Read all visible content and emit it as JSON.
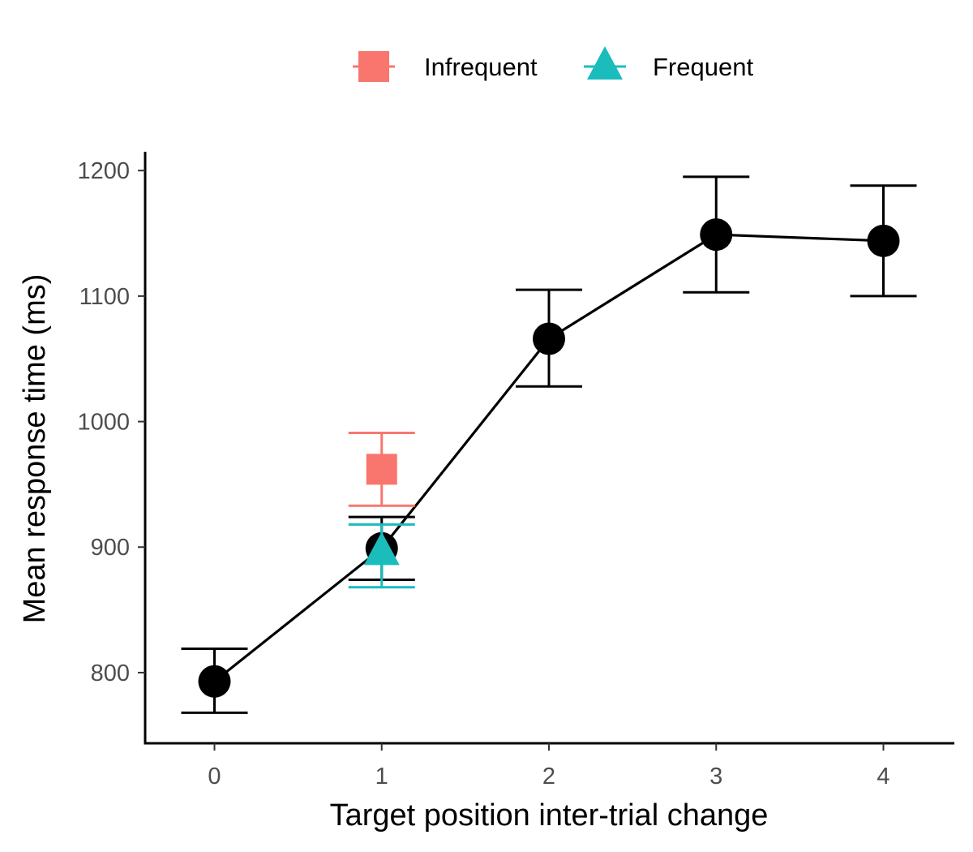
{
  "chart_data": {
    "type": "scatter",
    "xlabel": "Target position inter-trial change",
    "ylabel": "Mean response time (ms)",
    "x_ticks": [
      0,
      1,
      2,
      3,
      4
    ],
    "y_ticks": [
      800,
      900,
      1000,
      1100,
      1200
    ],
    "xlim": [
      -0.4,
      4.4
    ],
    "ylim": [
      745,
      1215
    ],
    "grid": false,
    "legend_position": "top",
    "overall": {
      "line": true,
      "color": "#000000",
      "points": [
        {
          "x": 0,
          "y": 793,
          "lower": 768,
          "upper": 819
        },
        {
          "x": 1,
          "y": 899,
          "lower": 874,
          "upper": 924
        },
        {
          "x": 2,
          "y": 1066,
          "lower": 1028,
          "upper": 1105
        },
        {
          "x": 3,
          "y": 1149,
          "lower": 1103,
          "upper": 1195
        },
        {
          "x": 4,
          "y": 1144,
          "lower": 1100,
          "upper": 1188
        }
      ]
    },
    "series": [
      {
        "name": "Infrequent",
        "shape": "square",
        "color": "#F8766D",
        "points": [
          {
            "x": 1,
            "y": 962,
            "lower": 933,
            "upper": 991
          }
        ]
      },
      {
        "name": "Frequent",
        "shape": "triangle",
        "color": "#1ABCBC",
        "points": [
          {
            "x": 1,
            "y": 896,
            "lower": 868,
            "upper": 918
          }
        ]
      }
    ]
  }
}
